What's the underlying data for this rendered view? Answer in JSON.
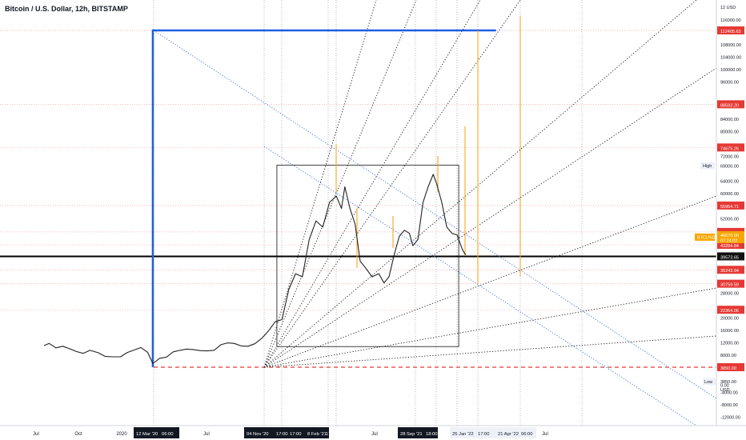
{
  "header": {
    "title": "Bitcoin / U.S. Dollar, 12h, BITSTAMP"
  },
  "colors": {
    "box_blue": "#1f5ee0",
    "fan_black": "#111111",
    "diag_blue": "#3b6fd8",
    "level_red": "#e53935",
    "level_red_line": "#f4a0a0",
    "candle": "#222222",
    "orange": "#f5a623",
    "label_dark": "#111111"
  },
  "chart_data": {
    "type": "line",
    "title": "Bitcoin / U.S. Dollar, 12h, BITSTAMP",
    "symbol": "BTCUSD",
    "ylim": [
      -14000,
      122000
    ],
    "y_ticks": [
      {
        "v": 116000,
        "t": "116000.00"
      },
      {
        "v": 108000,
        "t": "108000.00"
      },
      {
        "v": 104000,
        "t": "104000.00"
      },
      {
        "v": 100000,
        "t": "100000.00"
      },
      {
        "v": 96000,
        "t": "96000.00"
      },
      {
        "v": 84000,
        "t": "84000.00"
      },
      {
        "v": 80000,
        "t": "80000.00"
      },
      {
        "v": 72000,
        "t": "72000.00"
      },
      {
        "v": 64000,
        "t": "64000.00"
      },
      {
        "v": 60000,
        "t": "60000.00"
      },
      {
        "v": 52000,
        "t": "52000.00"
      },
      {
        "v": 28000,
        "t": "28000.00"
      },
      {
        "v": 20000,
        "t": "20000.00"
      },
      {
        "v": 16000,
        "t": "16000.00"
      },
      {
        "v": 12000,
        "t": "12000.00"
      },
      {
        "v": 8000,
        "t": "8000.00"
      },
      {
        "v": 4000,
        "t": "4000.00"
      },
      {
        "v": -4000,
        "t": "-4000.00"
      },
      {
        "v": -8000,
        "t": "-8000.00"
      },
      {
        "v": -12000,
        "t": "-12000.00"
      }
    ],
    "price_levels": [
      {
        "v": 112405.63,
        "t": "112405.63",
        "style": "red"
      },
      {
        "v": 88592.2,
        "t": "88592.20",
        "style": "red"
      },
      {
        "v": 74675.26,
        "t": "74675.26",
        "style": "red"
      },
      {
        "v": 55964.71,
        "t": "55964.71",
        "style": "red"
      },
      {
        "v": 47459.92,
        "t": "47459.92",
        "style": "red"
      },
      {
        "v": 43284.84,
        "t": "43284.84",
        "style": "red"
      },
      {
        "v": 39573.65,
        "t": "39573.65",
        "style": "black"
      },
      {
        "v": 35243.94,
        "t": "35243.94",
        "style": "red"
      },
      {
        "v": 30759.59,
        "t": "30759.59",
        "style": "red"
      },
      {
        "v": 22364.06,
        "t": "22364.06",
        "style": "red"
      },
      {
        "v": 3850.0,
        "t": "3850.00",
        "style": "red"
      }
    ],
    "current_price": {
      "v": 46670.0,
      "t": "46670.00",
      "countdown": "07:24:02",
      "label": "BTCUSD"
    },
    "high": {
      "label": "High",
      "v": 69000.0,
      "t": "69000.00"
    },
    "low": {
      "label": "Low",
      "v": 3850.0,
      "t": "3850.00"
    },
    "top_tick": "12 USD",
    "extra_tick": "0.00",
    "usd_label": "USD",
    "x_ticks": [
      "Jul",
      "Oct",
      "2020",
      "Jul",
      "Jul",
      "Jul"
    ],
    "x_highlight": [
      "12 Mar '20",
      "06:00",
      "04 Nov '20",
      "17:00",
      "17:00",
      "8 Feb '21",
      "17:00",
      "28 Sep '21",
      "18:00",
      "25 Jan '22",
      "17:00",
      "21 Apr '22",
      "06:00"
    ],
    "series": [
      {
        "values": [
          [
            2019.55,
            10800
          ],
          [
            2019.58,
            11500
          ],
          [
            2019.62,
            10100
          ],
          [
            2019.66,
            10600
          ],
          [
            2019.7,
            9800
          ],
          [
            2019.74,
            8900
          ],
          [
            2019.78,
            8300
          ],
          [
            2019.82,
            9300
          ],
          [
            2019.87,
            8500
          ],
          [
            2019.91,
            7300
          ],
          [
            2019.95,
            7200
          ],
          [
            2020.0,
            7200
          ],
          [
            2020.04,
            8600
          ],
          [
            2020.08,
            9400
          ],
          [
            2020.12,
            10200
          ],
          [
            2020.16,
            8600
          ],
          [
            2020.19,
            5000
          ],
          [
            2020.23,
            6700
          ],
          [
            2020.27,
            7100
          ],
          [
            2020.31,
            8800
          ],
          [
            2020.35,
            9300
          ],
          [
            2020.39,
            9700
          ],
          [
            2020.43,
            9500
          ],
          [
            2020.47,
            9200
          ],
          [
            2020.51,
            9100
          ],
          [
            2020.55,
            9300
          ],
          [
            2020.59,
            11100
          ],
          [
            2020.63,
            11700
          ],
          [
            2020.67,
            11500
          ],
          [
            2020.71,
            10700
          ],
          [
            2020.75,
            10600
          ],
          [
            2020.79,
            11400
          ],
          [
            2020.83,
            13100
          ],
          [
            2020.87,
            15500
          ],
          [
            2020.91,
            18500
          ],
          [
            2020.95,
            19200
          ],
          [
            2020.99,
            28900
          ],
          [
            2021.03,
            34000
          ],
          [
            2021.07,
            33000
          ],
          [
            2021.11,
            45000
          ],
          [
            2021.15,
            51000
          ],
          [
            2021.19,
            49000
          ],
          [
            2021.23,
            57000
          ],
          [
            2021.27,
            59000
          ],
          [
            2021.3,
            55000
          ],
          [
            2021.32,
            62000
          ],
          [
            2021.35,
            55000
          ],
          [
            2021.38,
            50000
          ],
          [
            2021.41,
            38000
          ],
          [
            2021.44,
            36000
          ],
          [
            2021.48,
            33000
          ],
          [
            2021.52,
            34000
          ],
          [
            2021.55,
            31000
          ],
          [
            2021.58,
            33000
          ],
          [
            2021.61,
            40000
          ],
          [
            2021.64,
            46000
          ],
          [
            2021.67,
            48000
          ],
          [
            2021.7,
            47000
          ],
          [
            2021.72,
            43000
          ],
          [
            2021.75,
            45000
          ],
          [
            2021.78,
            57000
          ],
          [
            2021.81,
            62000
          ],
          [
            2021.84,
            66000
          ],
          [
            2021.86,
            63000
          ],
          [
            2021.89,
            57000
          ],
          [
            2021.92,
            49000
          ],
          [
            2021.95,
            47000
          ],
          [
            2021.98,
            46500
          ],
          [
            2022.01,
            42000
          ],
          [
            2022.03,
            40000
          ]
        ]
      }
    ],
    "annotation_boxes": [
      {
        "x0": 2020.19,
        "x1": 2022.21,
        "y0": 3850,
        "y1": 112405.63,
        "color": "blue"
      },
      {
        "x0": 2020.92,
        "x1": 2021.99,
        "y0": 10500,
        "y1": 69000,
        "color": "black"
      }
    ]
  }
}
